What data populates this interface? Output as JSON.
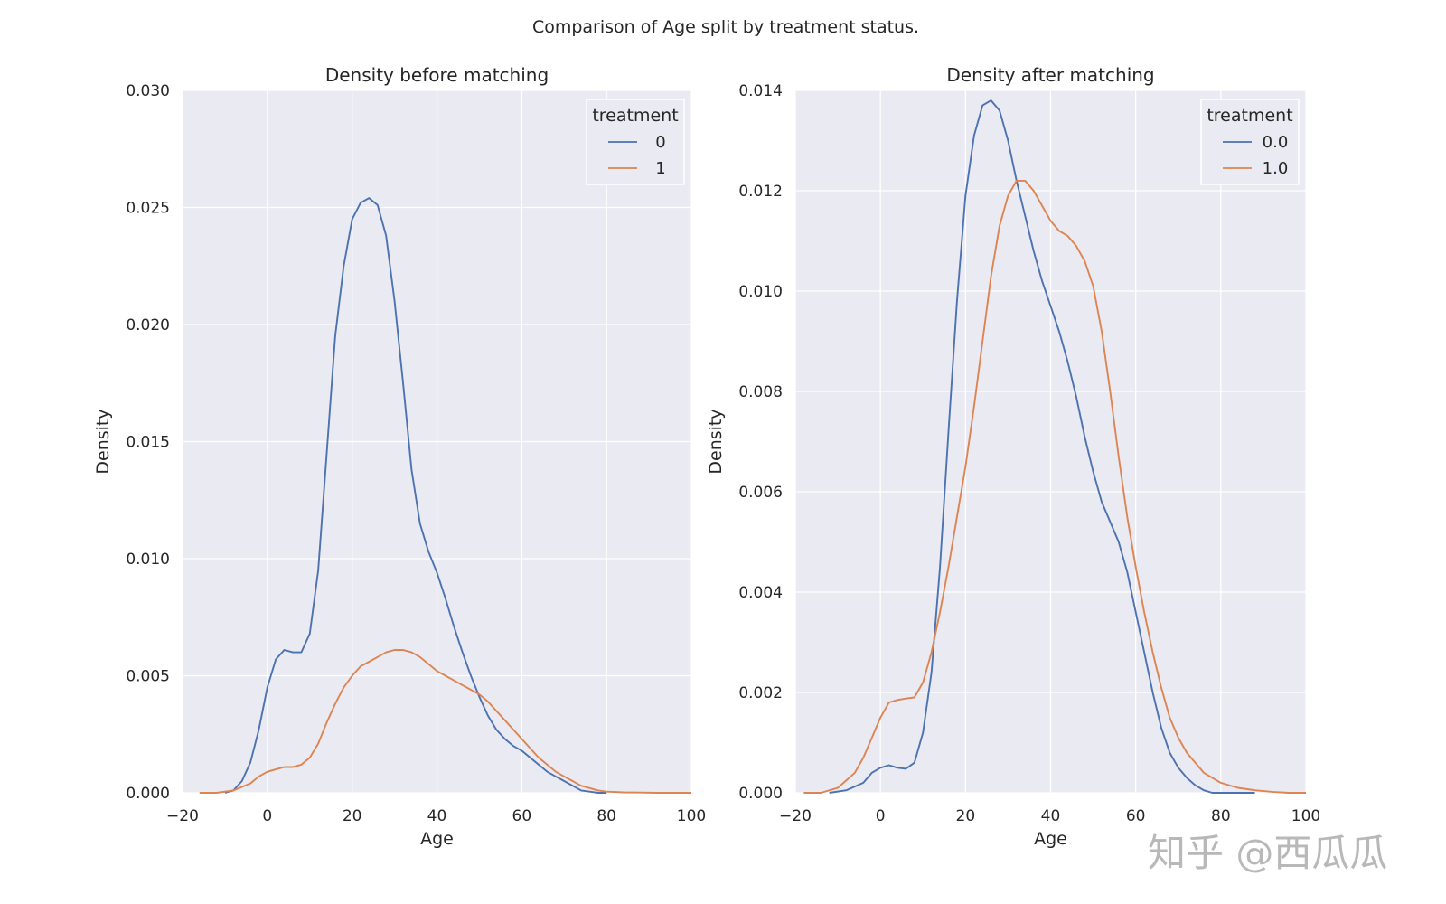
{
  "watermark": "知乎 @西瓜瓜",
  "chart_data": {
    "suptitle": "Comparison of Age split by treatment status.",
    "colors": {
      "0": "#4c72b0",
      "1": "#dd8452",
      "background": "#eaeaf2",
      "grid": "#ffffff"
    },
    "panels": [
      {
        "type": "line",
        "title": "Density before matching",
        "xlabel": "Age",
        "ylabel": "Density",
        "xlim": [
          -20,
          100
        ],
        "ylim": [
          0,
          0.03
        ],
        "xticks": [
          -20,
          0,
          20,
          40,
          60,
          80,
          100
        ],
        "xtick_labels": [
          "−20",
          "0",
          "20",
          "40",
          "60",
          "80",
          "100"
        ],
        "yticks": [
          0,
          0.005,
          0.01,
          0.015,
          0.02,
          0.025,
          0.03
        ],
        "ytick_labels": [
          "0.000",
          "0.005",
          "0.010",
          "0.015",
          "0.020",
          "0.025",
          "0.030"
        ],
        "grid": true,
        "legend": {
          "title": "treatment",
          "position": "top-right"
        },
        "series": [
          {
            "name": "0",
            "color": "#4c72b0",
            "x": [
              -10,
              -8,
              -6,
              -4,
              -2,
              0,
              2,
              4,
              6,
              8,
              10,
              12,
              14,
              16,
              18,
              20,
              22,
              24,
              26,
              28,
              30,
              32,
              34,
              36,
              38,
              40,
              42,
              44,
              46,
              48,
              50,
              52,
              54,
              56,
              58,
              60,
              62,
              64,
              66,
              68,
              70,
              72,
              74,
              76,
              78,
              80
            ],
            "y": [
              0,
              0.0001,
              0.0005,
              0.0013,
              0.0027,
              0.0045,
              0.0057,
              0.0061,
              0.006,
              0.006,
              0.0068,
              0.0095,
              0.0145,
              0.0195,
              0.0225,
              0.0245,
              0.0252,
              0.0254,
              0.0251,
              0.0238,
              0.021,
              0.0175,
              0.0138,
              0.0115,
              0.0103,
              0.0094,
              0.0083,
              0.0071,
              0.006,
              0.005,
              0.0041,
              0.0033,
              0.0027,
              0.0023,
              0.002,
              0.0018,
              0.0015,
              0.0012,
              0.0009,
              0.0007,
              0.0005,
              0.0003,
              0.0001,
              5e-05,
              0,
              0
            ]
          },
          {
            "name": "1",
            "color": "#dd8452",
            "x": [
              -16,
              -12,
              -8,
              -4,
              -2,
              0,
              2,
              4,
              6,
              8,
              10,
              12,
              14,
              16,
              18,
              20,
              22,
              24,
              26,
              28,
              30,
              32,
              34,
              36,
              38,
              40,
              42,
              44,
              46,
              48,
              50,
              52,
              54,
              56,
              58,
              60,
              62,
              64,
              66,
              68,
              70,
              72,
              74,
              76,
              78,
              80,
              84,
              88,
              92,
              96,
              100
            ],
            "y": [
              0,
              0,
              0.0001,
              0.0004,
              0.0007,
              0.0009,
              0.001,
              0.0011,
              0.0011,
              0.0012,
              0.0015,
              0.0021,
              0.003,
              0.0038,
              0.0045,
              0.005,
              0.0054,
              0.0056,
              0.0058,
              0.006,
              0.0061,
              0.0061,
              0.006,
              0.0058,
              0.0055,
              0.0052,
              0.005,
              0.0048,
              0.0046,
              0.0044,
              0.0042,
              0.0039,
              0.0035,
              0.0031,
              0.0027,
              0.0023,
              0.0019,
              0.0015,
              0.0012,
              0.0009,
              0.0007,
              0.0005,
              0.0003,
              0.0002,
              0.0001,
              5e-05,
              2e-05,
              1e-05,
              0,
              0,
              0
            ]
          }
        ]
      },
      {
        "type": "line",
        "title": "Density after matching",
        "xlabel": "Age",
        "ylabel": "Density",
        "xlim": [
          -20,
          100
        ],
        "ylim": [
          0,
          0.014
        ],
        "xticks": [
          -20,
          0,
          20,
          40,
          60,
          80,
          100
        ],
        "xtick_labels": [
          "−20",
          "0",
          "20",
          "40",
          "60",
          "80",
          "100"
        ],
        "yticks": [
          0,
          0.002,
          0.004,
          0.006,
          0.008,
          0.01,
          0.012,
          0.014
        ],
        "ytick_labels": [
          "0.000",
          "0.002",
          "0.004",
          "0.006",
          "0.008",
          "0.010",
          "0.012",
          "0.014"
        ],
        "grid": true,
        "legend": {
          "title": "treatment",
          "position": "top-right"
        },
        "series": [
          {
            "name": "0.0",
            "color": "#4c72b0",
            "x": [
              -12,
              -8,
              -4,
              -2,
              0,
              2,
              4,
              6,
              8,
              10,
              12,
              14,
              16,
              18,
              20,
              22,
              24,
              26,
              28,
              30,
              32,
              34,
              36,
              38,
              40,
              42,
              44,
              46,
              48,
              50,
              52,
              54,
              56,
              58,
              60,
              62,
              64,
              66,
              68,
              70,
              72,
              74,
              76,
              78,
              80,
              84,
              88
            ],
            "y": [
              0,
              5e-05,
              0.0002,
              0.0004,
              0.0005,
              0.00055,
              0.0005,
              0.00048,
              0.0006,
              0.0012,
              0.0024,
              0.0045,
              0.0072,
              0.0098,
              0.0119,
              0.0131,
              0.0137,
              0.0138,
              0.0136,
              0.013,
              0.0122,
              0.0115,
              0.0108,
              0.0102,
              0.0097,
              0.0092,
              0.0086,
              0.0079,
              0.0071,
              0.0064,
              0.0058,
              0.0054,
              0.005,
              0.0044,
              0.0036,
              0.0028,
              0.002,
              0.0013,
              0.0008,
              0.0005,
              0.0003,
              0.00015,
              5e-05,
              0,
              0,
              0,
              0
            ]
          },
          {
            "name": "1.0",
            "color": "#dd8452",
            "x": [
              -18,
              -14,
              -10,
              -6,
              -4,
              -2,
              0,
              2,
              4,
              6,
              8,
              10,
              12,
              14,
              16,
              18,
              20,
              22,
              24,
              26,
              28,
              30,
              32,
              34,
              36,
              38,
              40,
              42,
              44,
              46,
              48,
              50,
              52,
              54,
              56,
              58,
              60,
              62,
              64,
              66,
              68,
              70,
              72,
              74,
              76,
              78,
              80,
              84,
              88,
              92,
              96,
              100
            ],
            "y": [
              0,
              0,
              0.0001,
              0.0004,
              0.0007,
              0.0011,
              0.0015,
              0.0018,
              0.00185,
              0.00188,
              0.0019,
              0.0022,
              0.0028,
              0.0036,
              0.0045,
              0.0055,
              0.0065,
              0.0077,
              0.009,
              0.0103,
              0.0113,
              0.0119,
              0.0122,
              0.0122,
              0.012,
              0.0117,
              0.0114,
              0.0112,
              0.0111,
              0.0109,
              0.0106,
              0.0101,
              0.0092,
              0.008,
              0.0067,
              0.0055,
              0.0045,
              0.0036,
              0.0028,
              0.0021,
              0.0015,
              0.0011,
              0.0008,
              0.0006,
              0.0004,
              0.0003,
              0.0002,
              0.0001,
              5e-05,
              2e-05,
              0,
              0
            ]
          }
        ]
      }
    ]
  }
}
